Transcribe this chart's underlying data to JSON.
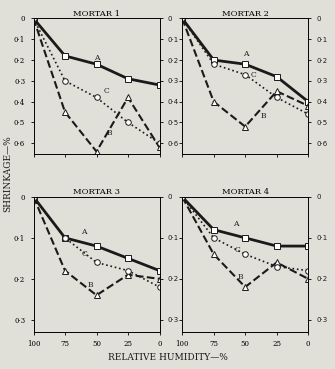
{
  "mortars": [
    {
      "title": "MORTAR 1",
      "ylim": [
        0,
        0.65
      ],
      "yticks": [
        0,
        0.1,
        0.2,
        0.3,
        0.4,
        0.5,
        0.6
      ],
      "series": {
        "A": {
          "x": [
            100,
            75,
            50,
            25,
            0
          ],
          "y": [
            0.0,
            0.18,
            0.22,
            0.29,
            0.32
          ],
          "marker": "s",
          "linestyle": "-",
          "linewidth": 2.0
        },
        "B": {
          "x": [
            100,
            75,
            50,
            25,
            0
          ],
          "y": [
            0.0,
            0.45,
            0.64,
            0.38,
            0.62
          ],
          "marker": "^",
          "linestyle": "--",
          "linewidth": 1.5
        },
        "C": {
          "x": [
            100,
            75,
            50,
            25,
            0
          ],
          "y": [
            0.0,
            0.3,
            0.38,
            0.5,
            0.6
          ],
          "marker": "o",
          "linestyle": ":",
          "linewidth": 1.2
        }
      },
      "label_positions": {
        "A": [
          52,
          0.2
        ],
        "B": [
          42,
          0.56
        ],
        "C": [
          44,
          0.36
        ]
      }
    },
    {
      "title": "MORTAR 2",
      "ylim": [
        0,
        0.65
      ],
      "yticks": [
        0,
        0.1,
        0.2,
        0.3,
        0.4,
        0.5,
        0.6
      ],
      "series": {
        "A": {
          "x": [
            100,
            75,
            50,
            25,
            0
          ],
          "y": [
            0.0,
            0.2,
            0.22,
            0.28,
            0.4
          ],
          "marker": "s",
          "linestyle": "-",
          "linewidth": 2.0
        },
        "B": {
          "x": [
            100,
            75,
            50,
            25,
            0
          ],
          "y": [
            0.0,
            0.4,
            0.52,
            0.35,
            0.42
          ],
          "marker": "^",
          "linestyle": "--",
          "linewidth": 1.5
        },
        "C": {
          "x": [
            100,
            75,
            50,
            25,
            0
          ],
          "y": [
            0.0,
            0.22,
            0.27,
            0.38,
            0.46
          ],
          "marker": "o",
          "linestyle": ":",
          "linewidth": 1.2
        }
      },
      "label_positions": {
        "A": [
          52,
          0.18
        ],
        "B": [
          38,
          0.48
        ],
        "C": [
          46,
          0.28
        ]
      }
    },
    {
      "title": "MORTAR 3",
      "ylim": [
        0,
        0.33
      ],
      "yticks": [
        0,
        0.1,
        0.2,
        0.3
      ],
      "series": {
        "A": {
          "x": [
            100,
            75,
            50,
            25,
            0
          ],
          "y": [
            0.0,
            0.1,
            0.12,
            0.15,
            0.18
          ],
          "marker": "s",
          "linestyle": "-",
          "linewidth": 2.0
        },
        "B": {
          "x": [
            100,
            75,
            50,
            25,
            0
          ],
          "y": [
            0.0,
            0.18,
            0.24,
            0.19,
            0.2
          ],
          "marker": "^",
          "linestyle": "--",
          "linewidth": 1.5
        },
        "C": {
          "x": [
            100,
            75,
            50,
            25,
            0
          ],
          "y": [
            0.0,
            0.1,
            0.16,
            0.18,
            0.22
          ],
          "marker": "o",
          "linestyle": ":",
          "linewidth": 1.2
        }
      },
      "label_positions": {
        "A": [
          62,
          0.09
        ],
        "B": [
          57,
          0.22
        ],
        "C": [
          62,
          0.145
        ]
      }
    },
    {
      "title": "MORTAR 4",
      "ylim": [
        0,
        0.33
      ],
      "yticks": [
        0,
        0.1,
        0.2,
        0.3
      ],
      "series": {
        "A": {
          "x": [
            100,
            75,
            50,
            25,
            0
          ],
          "y": [
            0.0,
            0.08,
            0.1,
            0.12,
            0.12
          ],
          "marker": "s",
          "linestyle": "-",
          "linewidth": 2.0
        },
        "B": {
          "x": [
            100,
            75,
            50,
            25,
            0
          ],
          "y": [
            0.0,
            0.14,
            0.22,
            0.16,
            0.2
          ],
          "marker": "^",
          "linestyle": "--",
          "linewidth": 1.5
        },
        "C": {
          "x": [
            100,
            75,
            50,
            25,
            0
          ],
          "y": [
            0.0,
            0.1,
            0.14,
            0.17,
            0.18
          ],
          "marker": "o",
          "linestyle": ":",
          "linewidth": 1.2
        }
      },
      "label_positions": {
        "A": [
          60,
          0.07
        ],
        "B": [
          56,
          0.2
        ],
        "C": [
          58,
          0.135
        ]
      }
    }
  ],
  "xlabel": "RELATIVE HUMIDITY—%",
  "ylabel": "SHRINKAGE—%",
  "bg_color": "#e0e0d8",
  "line_color": "#1a1a1a",
  "marker_size": 4,
  "label_fontsize": 5.5,
  "title_fontsize": 6.0
}
